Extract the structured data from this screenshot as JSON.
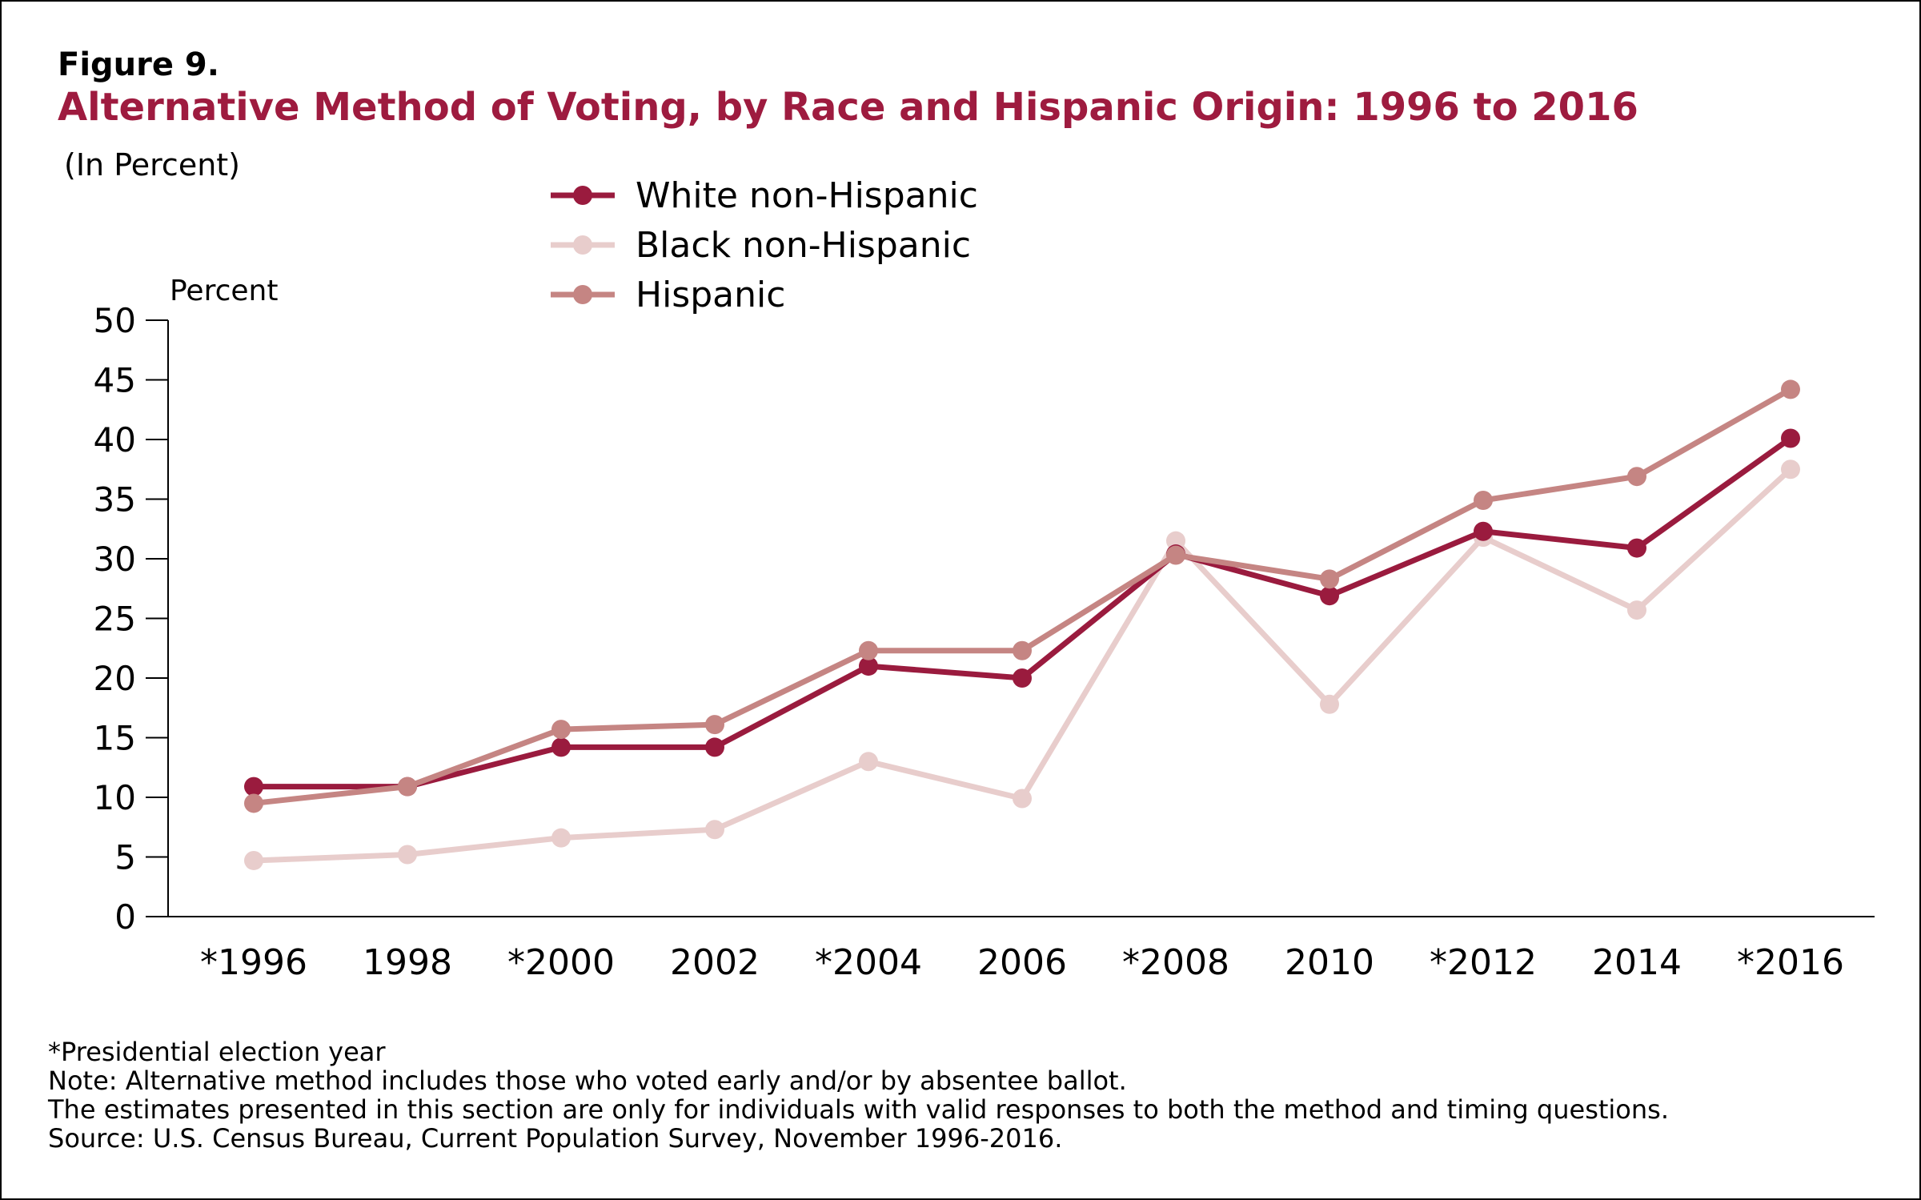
{
  "figure_label": "Figure 9.",
  "title": "Alternative Method of Voting, by Race and Hispanic Origin: 1996 to 2016",
  "subtitle": "(In Percent)",
  "notes": [
    "*Presidential election year",
    "Note: Alternative method includes those who voted early and/or by absentee ballot.",
    "The estimates presented in this section are only for individuals with valid responses to both the method and timing questions.",
    "Source: U.S. Census Bureau, Current Population Survey, November 1996-2016."
  ],
  "chart_data": {
    "type": "line",
    "title": "",
    "xlabel": "",
    "ylabel": "Percent",
    "ylim": [
      0,
      50
    ],
    "yticks": [
      0,
      5,
      10,
      15,
      20,
      25,
      30,
      35,
      40,
      45,
      50
    ],
    "categories": [
      "*1996",
      "1998",
      "*2000",
      "2002",
      "*2004",
      "2006",
      "*2008",
      "2010",
      "*2012",
      "2014",
      "*2016"
    ],
    "grid": false,
    "legend_position": "top-center",
    "series": [
      {
        "name": "White non-Hispanic",
        "color": "#9a1b3e",
        "values": [
          10.9,
          10.9,
          14.2,
          14.2,
          21.0,
          20.0,
          30.4,
          26.9,
          32.3,
          30.9,
          40.1
        ]
      },
      {
        "name": "Black non-Hispanic",
        "color": "#e8cdcc",
        "values": [
          4.7,
          5.2,
          6.6,
          7.3,
          13.0,
          9.9,
          31.5,
          17.8,
          31.8,
          25.7,
          37.5
        ]
      },
      {
        "name": "Hispanic",
        "color": "#c58583",
        "values": [
          9.5,
          10.9,
          15.7,
          16.1,
          22.3,
          22.3,
          30.3,
          28.3,
          34.9,
          36.9,
          44.2
        ]
      }
    ]
  }
}
